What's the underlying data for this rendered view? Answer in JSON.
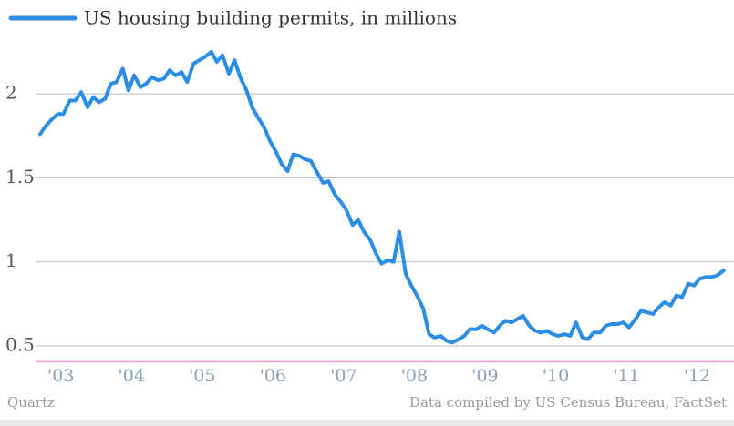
{
  "chart_data": {
    "type": "line",
    "legend_label": "US housing building permits, in millions",
    "source_left": "Quartz",
    "source_right": "Data compiled by US Census Bureau, FactSet",
    "color": "#2b8de4",
    "grid": true,
    "xlim": [
      2003,
      2012.75
    ],
    "xticks": [
      {
        "value": 2003,
        "label": "'03"
      },
      {
        "value": 2004,
        "label": "'04"
      },
      {
        "value": 2005,
        "label": "'05"
      },
      {
        "value": 2006,
        "label": "'06"
      },
      {
        "value": 2007,
        "label": "'07"
      },
      {
        "value": 2008,
        "label": "'08"
      },
      {
        "value": 2009,
        "label": "'09"
      },
      {
        "value": 2010,
        "label": "'10"
      },
      {
        "value": 2011,
        "label": "'11"
      },
      {
        "value": 2012,
        "label": "'12"
      }
    ],
    "ylim": [
      0.4,
      2.45
    ],
    "yticks": [
      0.5,
      1,
      1.5,
      2
    ],
    "x": [
      2003,
      2003.08,
      2003.17,
      2003.25,
      2003.33,
      2003.42,
      2003.5,
      2003.58,
      2003.67,
      2003.75,
      2003.83,
      2003.92,
      2004,
      2004.08,
      2004.17,
      2004.25,
      2004.33,
      2004.42,
      2004.5,
      2004.58,
      2004.67,
      2004.75,
      2004.83,
      2004.92,
      2005,
      2005.08,
      2005.17,
      2005.25,
      2005.33,
      2005.42,
      2005.5,
      2005.58,
      2005.67,
      2005.75,
      2005.83,
      2005.92,
      2006,
      2006.08,
      2006.17,
      2006.25,
      2006.33,
      2006.42,
      2006.5,
      2006.58,
      2006.67,
      2006.75,
      2006.83,
      2006.92,
      2007,
      2007.08,
      2007.17,
      2007.25,
      2007.33,
      2007.42,
      2007.5,
      2007.58,
      2007.67,
      2007.75,
      2007.83,
      2007.92,
      2008,
      2008.08,
      2008.17,
      2008.25,
      2008.33,
      2008.42,
      2008.5,
      2008.58,
      2008.67,
      2008.75,
      2008.83,
      2008.92,
      2009,
      2009.08,
      2009.17,
      2009.25,
      2009.33,
      2009.42,
      2009.5,
      2009.58,
      2009.67,
      2009.75,
      2009.83,
      2009.92,
      2010,
      2010.08,
      2010.17,
      2010.25,
      2010.33,
      2010.42,
      2010.5,
      2010.58,
      2010.67,
      2010.75,
      2010.83,
      2010.92,
      2011,
      2011.08,
      2011.17,
      2011.25,
      2011.33,
      2011.42,
      2011.5,
      2011.58,
      2011.67,
      2011.75,
      2011.83,
      2011.92,
      2012,
      2012.08,
      2012.17,
      2012.25,
      2012.33,
      2012.42,
      2012.5,
      2012.58,
      2012.67
    ],
    "values": [
      1.76,
      1.81,
      1.85,
      1.88,
      1.88,
      1.96,
      1.96,
      2.01,
      1.92,
      1.98,
      1.95,
      1.97,
      2.06,
      2.07,
      2.15,
      2.02,
      2.11,
      2.04,
      2.06,
      2.1,
      2.08,
      2.09,
      2.14,
      2.11,
      2.13,
      2.07,
      2.18,
      2.2,
      2.22,
      2.25,
      2.19,
      2.23,
      2.12,
      2.2,
      2.1,
      2.02,
      1.92,
      1.86,
      1.8,
      1.72,
      1.66,
      1.58,
      1.54,
      1.64,
      1.63,
      1.61,
      1.6,
      1.53,
      1.47,
      1.48,
      1.4,
      1.36,
      1.31,
      1.22,
      1.25,
      1.18,
      1.13,
      1.05,
      0.99,
      1.01,
      1.0,
      1.18,
      0.93,
      0.86,
      0.8,
      0.72,
      0.57,
      0.55,
      0.56,
      0.53,
      0.52,
      0.54,
      0.56,
      0.6,
      0.6,
      0.62,
      0.6,
      0.58,
      0.62,
      0.65,
      0.64,
      0.66,
      0.68,
      0.62,
      0.59,
      0.58,
      0.59,
      0.57,
      0.56,
      0.57,
      0.56,
      0.64,
      0.55,
      0.54,
      0.58,
      0.58,
      0.62,
      0.63,
      0.63,
      0.64,
      0.61,
      0.66,
      0.71,
      0.7,
      0.69,
      0.73,
      0.76,
      0.74,
      0.8,
      0.79,
      0.87,
      0.86,
      0.9,
      0.91,
      0.91,
      0.92,
      0.95
    ]
  }
}
